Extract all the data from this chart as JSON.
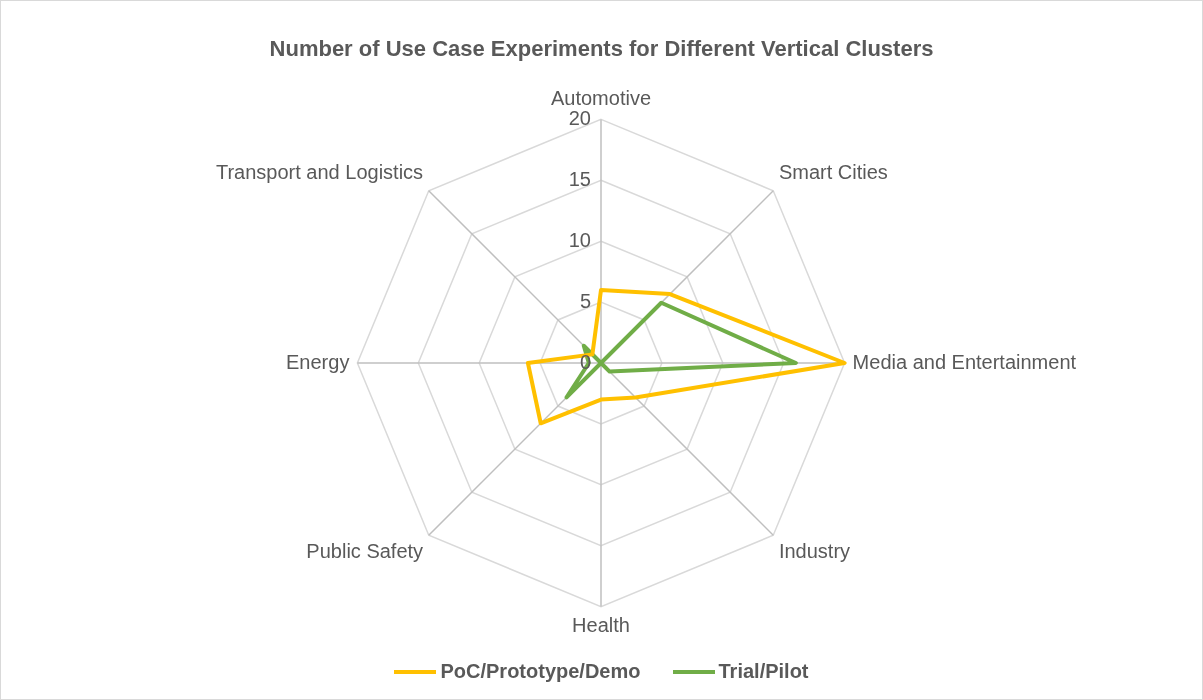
{
  "chart_data": {
    "type": "radar",
    "title": "Number of Use Case Experiments for Different Vertical Clusters",
    "categories": [
      "Automotive",
      "Smart Cities",
      "Media and Entertainment",
      "Industry",
      "Health",
      "Public Safety",
      "Energy",
      "Transport and Logistics"
    ],
    "series": [
      {
        "name": "PoC/Prototype/Demo",
        "color": "#ffc000",
        "values": [
          6,
          8,
          20,
          4,
          3,
          7,
          6,
          1
        ]
      },
      {
        "name": "Trial/Pilot",
        "color": "#70ad47",
        "values": [
          0,
          7,
          16,
          1,
          0,
          4,
          1,
          2
        ]
      }
    ],
    "ylim": [
      0,
      20
    ],
    "yticks": [
      0,
      5,
      10,
      15,
      20
    ],
    "grid": true,
    "legend": "bottom",
    "marker": "none"
  }
}
